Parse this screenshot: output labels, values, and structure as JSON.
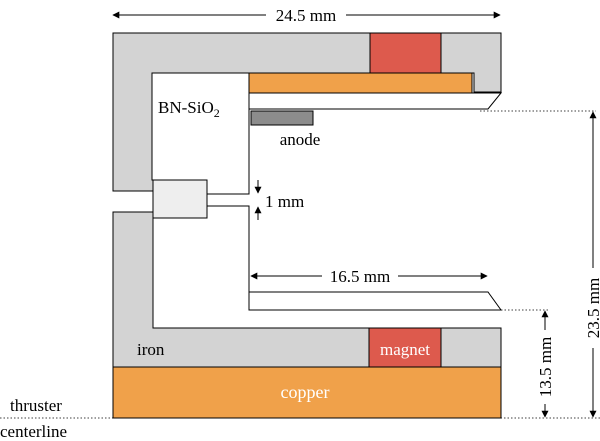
{
  "labels": {
    "dim_width": "24.5 mm",
    "dim_channel": "16.5 mm",
    "dim_gap": "1 mm",
    "dim_outer_radius": "23.5 mm",
    "dim_inner_radius": "13.5 mm",
    "channel_wall": "BN-SiO",
    "channel_wall_sub": "2",
    "anode": "anode",
    "iron": "iron",
    "magnet": "magnet",
    "copper": "copper",
    "centerline_line1": "thruster",
    "centerline_line2": "centerline"
  },
  "colors": {
    "iron": "#d3d3d3",
    "insulator": "#eeeeee",
    "magnet": "#dd5a4d",
    "copper": "#f0a14a",
    "anode": "#8c8c8c",
    "outline": "#000000"
  }
}
